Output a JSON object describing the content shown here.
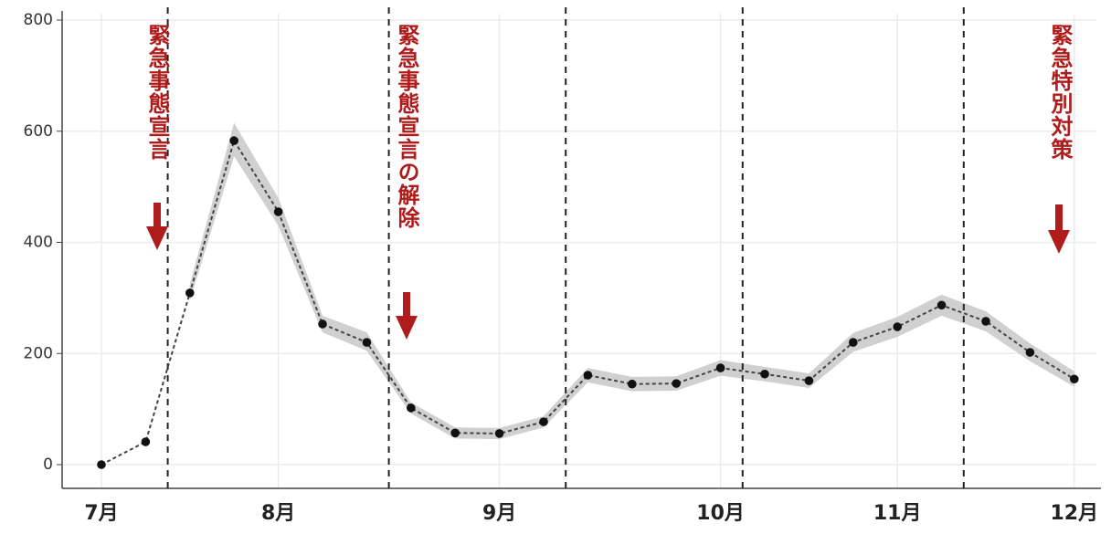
{
  "chart_data": {
    "type": "line",
    "categories": [
      "7月",
      null,
      null,
      null,
      "8月",
      null,
      null,
      null,
      null,
      "9月",
      null,
      null,
      null,
      null,
      "10月",
      null,
      null,
      null,
      "11月",
      null,
      null,
      null,
      "12月"
    ],
    "series": [
      {
        "color": "#111111",
        "values": [
          0,
          41,
          309,
          583,
          455,
          253,
          220,
          102,
          57,
          56,
          77,
          161,
          145,
          146,
          174,
          163,
          151,
          220,
          248,
          287,
          258,
          202,
          154
        ]
      }
    ],
    "band": {
      "color": "#c8c8c8",
      "lower": [
        null,
        null,
        295,
        555,
        430,
        238,
        205,
        92,
        47,
        46,
        67,
        148,
        132,
        133,
        160,
        150,
        138,
        203,
        230,
        268,
        240,
        186,
        140
      ],
      "upper": [
        null,
        null,
        325,
        615,
        480,
        268,
        238,
        112,
        67,
        66,
        87,
        174,
        158,
        159,
        188,
        176,
        164,
        237,
        266,
        306,
        276,
        218,
        168
      ]
    },
    "vlines": [
      1.5,
      6.5,
      10.5,
      14.5,
      19.5
    ],
    "annotations": [
      {
        "text": "緊急事態宣言",
        "color": "#b01c1c"
      },
      {
        "text": "緊急事態宣言の解除",
        "color": "#b01c1c"
      },
      {
        "text": "緊急特別対策",
        "color": "#b01c1c"
      }
    ],
    "ylim": [
      0,
      800
    ],
    "yticks": [
      0,
      200,
      400,
      600,
      800
    ],
    "grid": true
  }
}
